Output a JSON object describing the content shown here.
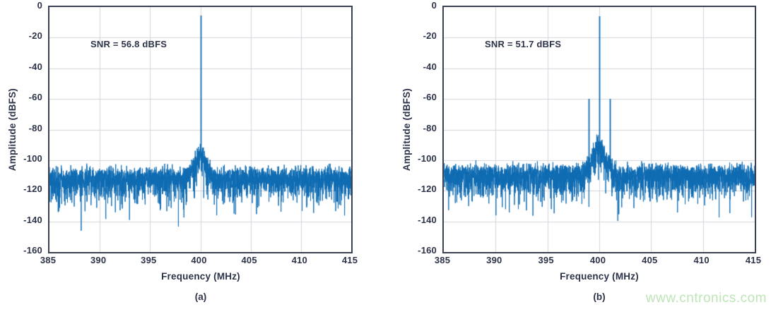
{
  "colors": {
    "line": "#0e6bb2",
    "axis": "#3a4152",
    "grid": "#d2d5dc",
    "text": "#2d3349",
    "watermark": "#bde5b6"
  },
  "watermark": {
    "text": "www.cntronics.com"
  },
  "chart_data": [
    {
      "type": "line",
      "caption": "(a)",
      "annotation": "SNR = 56.8 dBFS",
      "xlabel": "Frequency (MHz)",
      "ylabel": "Amplitude (dBFS)",
      "xlim": [
        385,
        415
      ],
      "ylim": [
        -160,
        0
      ],
      "xticks": [
        385,
        390,
        395,
        400,
        405,
        410,
        415
      ],
      "yticks": [
        0,
        -20,
        -40,
        -60,
        -80,
        -100,
        -120,
        -140,
        -160
      ],
      "grid": true,
      "legend": null,
      "tones": [
        {
          "name": "fundamental",
          "freq_mhz": 400,
          "amp_dbfs": -5.5
        }
      ],
      "noise": {
        "floor_dbfs": -111,
        "skirt_peak_delta_db": 15,
        "skirt_sigma_mhz": 0.55,
        "deepest_spike_dbfs": -154,
        "seed": 7,
        "points": 3500
      }
    },
    {
      "type": "line",
      "caption": "(b)",
      "annotation": "SNR = 51.7 dBFS",
      "xlabel": "Frequency (MHz)",
      "ylabel": "Amplitude (dBFS)",
      "xlim": [
        385,
        415
      ],
      "ylim": [
        -160,
        0
      ],
      "xticks": [
        385,
        390,
        395,
        400,
        405,
        410,
        415
      ],
      "yticks": [
        0,
        -20,
        -40,
        -60,
        -80,
        -100,
        -120,
        -140,
        -160
      ],
      "grid": true,
      "legend": null,
      "tones": [
        {
          "name": "fundamental",
          "freq_mhz": 400,
          "amp_dbfs": -6
        },
        {
          "name": "spur-left",
          "freq_mhz": 399.0,
          "amp_dbfs": -60
        },
        {
          "name": "spur-right",
          "freq_mhz": 401.0,
          "amp_dbfs": -60
        }
      ],
      "noise": {
        "floor_dbfs": -109,
        "skirt_peak_delta_db": 18,
        "skirt_sigma_mhz": 0.65,
        "deepest_spike_dbfs": -140,
        "seed": 13,
        "points": 3500
      }
    }
  ]
}
